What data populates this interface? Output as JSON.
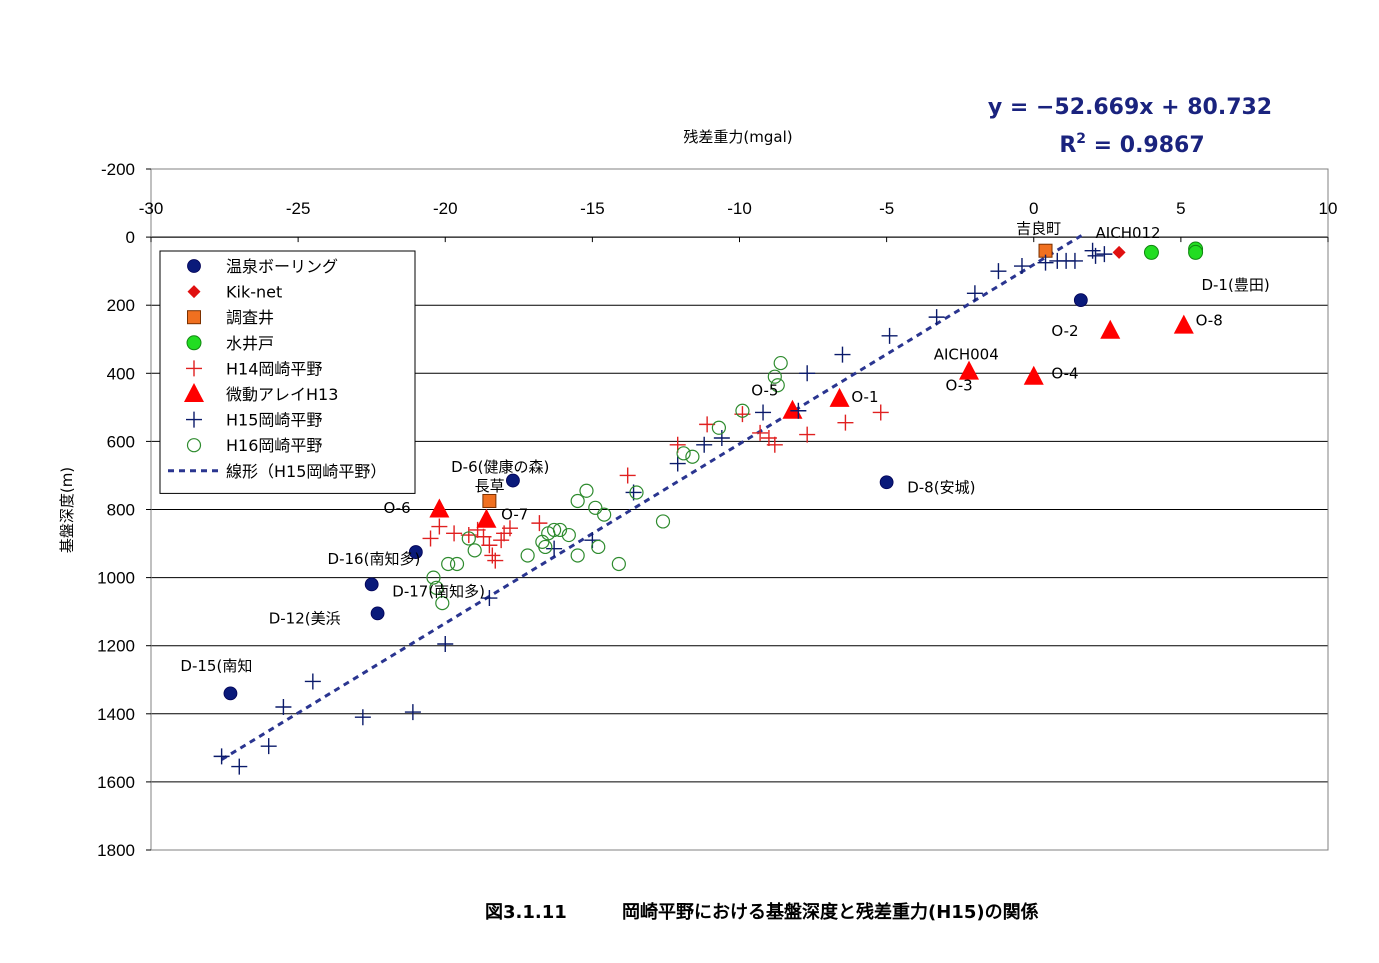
{
  "chart_data": {
    "type": "scatter",
    "caption_number": "図3.1.11",
    "caption_title": "岡崎平野における基盤深度と残差重力(H15)の関係",
    "xlabel": "残差重力(mgal)",
    "ylabel": "基盤深度(m)",
    "xlim": [
      -30,
      10
    ],
    "ylim": [
      -200,
      1800
    ],
    "y_reversed": true,
    "x_ticks": [
      "-30",
      "-25",
      "-20",
      "-15",
      "-10",
      "-5",
      "0",
      "5",
      "10"
    ],
    "y_ticks": [
      "-200",
      "0",
      "200",
      "400",
      "600",
      "800",
      "1000",
      "1200",
      "1400",
      "1600",
      "1800"
    ],
    "gridlines": "horizontal",
    "legend_position": "left",
    "equation": "y = −52.669x + 80.732",
    "r2_prefix": "R",
    "r2_sup": "2",
    "r2_suffix": " = 0.9867",
    "series": [
      {
        "name": "温泉ボーリング",
        "marker": "filled-circle",
        "color": "#0a1a7a",
        "points": [
          [
            -27.3,
            1340
          ],
          [
            -22.3,
            1105
          ],
          [
            -22.5,
            1020
          ],
          [
            -21.0,
            925
          ],
          [
            -17.7,
            715
          ],
          [
            -5.0,
            720
          ],
          [
            1.6,
            185
          ]
        ]
      },
      {
        "name": "Kik-net",
        "marker": "diamond",
        "color": "#e01010",
        "points": [
          [
            2.9,
            45
          ]
        ]
      },
      {
        "name": "調査井",
        "marker": "square",
        "color": "#f07020",
        "points": [
          [
            -18.5,
            775
          ],
          [
            0.4,
            40
          ]
        ]
      },
      {
        "name": "水井戸",
        "marker": "green-circle",
        "color": "#22dd22",
        "points": [
          [
            4.0,
            45
          ],
          [
            5.5,
            35
          ],
          [
            5.5,
            45
          ]
        ]
      },
      {
        "name": "H14岡崎平野",
        "marker": "plus",
        "color": "#e02020",
        "points": [
          [
            -20.5,
            885
          ],
          [
            -20.2,
            850
          ],
          [
            -19.7,
            870
          ],
          [
            -19.2,
            875
          ],
          [
            -18.9,
            860
          ],
          [
            -18.7,
            880
          ],
          [
            -18.5,
            905
          ],
          [
            -18.4,
            935
          ],
          [
            -18.3,
            950
          ],
          [
            -18.1,
            890
          ],
          [
            -18.0,
            870
          ],
          [
            -17.8,
            855
          ],
          [
            -16.8,
            840
          ],
          [
            -13.8,
            700
          ],
          [
            -12.1,
            610
          ],
          [
            -11.1,
            550
          ],
          [
            -9.9,
            520
          ],
          [
            -9.3,
            575
          ],
          [
            -9.0,
            590
          ],
          [
            -8.8,
            610
          ],
          [
            -7.7,
            580
          ],
          [
            -6.4,
            545
          ],
          [
            -5.2,
            515
          ]
        ]
      },
      {
        "name": "微動アレイH13",
        "marker": "triangle",
        "color": "#ff0000",
        "points": [
          [
            -20.2,
            800
          ],
          [
            -18.6,
            830
          ],
          [
            -8.2,
            510
          ],
          [
            -6.6,
            475
          ],
          [
            -2.2,
            395
          ],
          [
            0.0,
            410
          ],
          [
            2.6,
            275
          ],
          [
            5.1,
            260
          ]
        ]
      },
      {
        "name": "H15岡崎平野",
        "marker": "plus",
        "color": "#0a1a6a",
        "points": [
          [
            -27.6,
            1525
          ],
          [
            -27.0,
            1555
          ],
          [
            -26.0,
            1495
          ],
          [
            -24.5,
            1305
          ],
          [
            -25.5,
            1380
          ],
          [
            -22.8,
            1410
          ],
          [
            -21.1,
            1395
          ],
          [
            -20.0,
            1195
          ],
          [
            -18.5,
            1060
          ],
          [
            -16.3,
            915
          ],
          [
            -15.0,
            890
          ],
          [
            -13.6,
            750
          ],
          [
            -12.1,
            665
          ],
          [
            -11.2,
            610
          ],
          [
            -10.6,
            590
          ],
          [
            -9.2,
            515
          ],
          [
            -8.0,
            510
          ],
          [
            -7.7,
            400
          ],
          [
            -6.5,
            345
          ],
          [
            -4.9,
            290
          ],
          [
            -3.3,
            235
          ],
          [
            -2.0,
            165
          ],
          [
            -1.2,
            100
          ],
          [
            -0.4,
            85
          ],
          [
            0.4,
            75
          ],
          [
            0.8,
            70
          ],
          [
            1.1,
            70
          ],
          [
            1.4,
            70
          ],
          [
            2.0,
            40
          ],
          [
            2.4,
            50
          ],
          [
            2.1,
            55
          ]
        ]
      },
      {
        "name": "H16岡崎平野",
        "marker": "open-circle",
        "color": "#2e8b2e",
        "points": [
          [
            -20.4,
            1000
          ],
          [
            -20.3,
            1030
          ],
          [
            -20.1,
            1075
          ],
          [
            -19.9,
            960
          ],
          [
            -19.6,
            960
          ],
          [
            -19.2,
            885
          ],
          [
            -19.0,
            920
          ],
          [
            -17.2,
            935
          ],
          [
            -16.7,
            895
          ],
          [
            -16.6,
            910
          ],
          [
            -16.5,
            870
          ],
          [
            -16.3,
            860
          ],
          [
            -16.1,
            860
          ],
          [
            -15.8,
            875
          ],
          [
            -15.5,
            935
          ],
          [
            -15.5,
            775
          ],
          [
            -15.2,
            745
          ],
          [
            -14.9,
            795
          ],
          [
            -14.8,
            910
          ],
          [
            -14.6,
            815
          ],
          [
            -14.1,
            960
          ],
          [
            -13.5,
            750
          ],
          [
            -12.6,
            835
          ],
          [
            -11.9,
            635
          ],
          [
            -11.6,
            645
          ],
          [
            -10.7,
            560
          ],
          [
            -9.9,
            510
          ],
          [
            -8.8,
            410
          ],
          [
            -8.7,
            435
          ],
          [
            -8.6,
            370
          ]
        ]
      }
    ],
    "trendline": {
      "name": "線形（H15岡崎平野）",
      "color": "#2a3590",
      "slope": -52.669,
      "intercept": 80.732,
      "x_range": [
        -27.6,
        1.7
      ]
    },
    "annotations": [
      {
        "text": "吉良町",
        "x": -0.6,
        "y": -10,
        "anchor": "start"
      },
      {
        "text": "AICH012",
        "x": 2.1,
        "y": 2,
        "anchor": "start"
      },
      {
        "text": "D-1(豊田)",
        "x": 5.7,
        "y": 155,
        "anchor": "start"
      },
      {
        "text": "O-2",
        "x": 0.6,
        "y": 290,
        "anchor": "start"
      },
      {
        "text": "O-8",
        "x": 5.5,
        "y": 260,
        "anchor": "start"
      },
      {
        "text": "AICH004",
        "x": -3.4,
        "y": 360,
        "anchor": "start"
      },
      {
        "text": "O-3",
        "x": -3.0,
        "y": 450,
        "anchor": "start"
      },
      {
        "text": "O-4",
        "x": 0.6,
        "y": 415,
        "anchor": "start"
      },
      {
        "text": "O-5",
        "x": -9.6,
        "y": 465,
        "anchor": "start"
      },
      {
        "text": "O-1",
        "x": -6.2,
        "y": 485,
        "anchor": "start"
      },
      {
        "text": "D-6(健康の森)",
        "x": -19.8,
        "y": 690,
        "anchor": "start"
      },
      {
        "text": "長草",
        "x": -19.0,
        "y": 745,
        "anchor": "start"
      },
      {
        "text": "D-8(安城)",
        "x": -4.3,
        "y": 750,
        "anchor": "start"
      },
      {
        "text": "O-6",
        "x": -22.1,
        "y": 810,
        "anchor": "start"
      },
      {
        "text": "O-7",
        "x": -18.1,
        "y": 830,
        "anchor": "start"
      },
      {
        "text": "D-16(南知多)",
        "x": -24.0,
        "y": 960,
        "anchor": "start"
      },
      {
        "text": "D-17(南知多)",
        "x": -21.8,
        "y": 1055,
        "anchor": "start"
      },
      {
        "text": "D-12(美浜",
        "x": -26.0,
        "y": 1135,
        "anchor": "start"
      },
      {
        "text": "D-15(南知",
        "x": -29.0,
        "y": 1275,
        "anchor": "start"
      }
    ]
  }
}
